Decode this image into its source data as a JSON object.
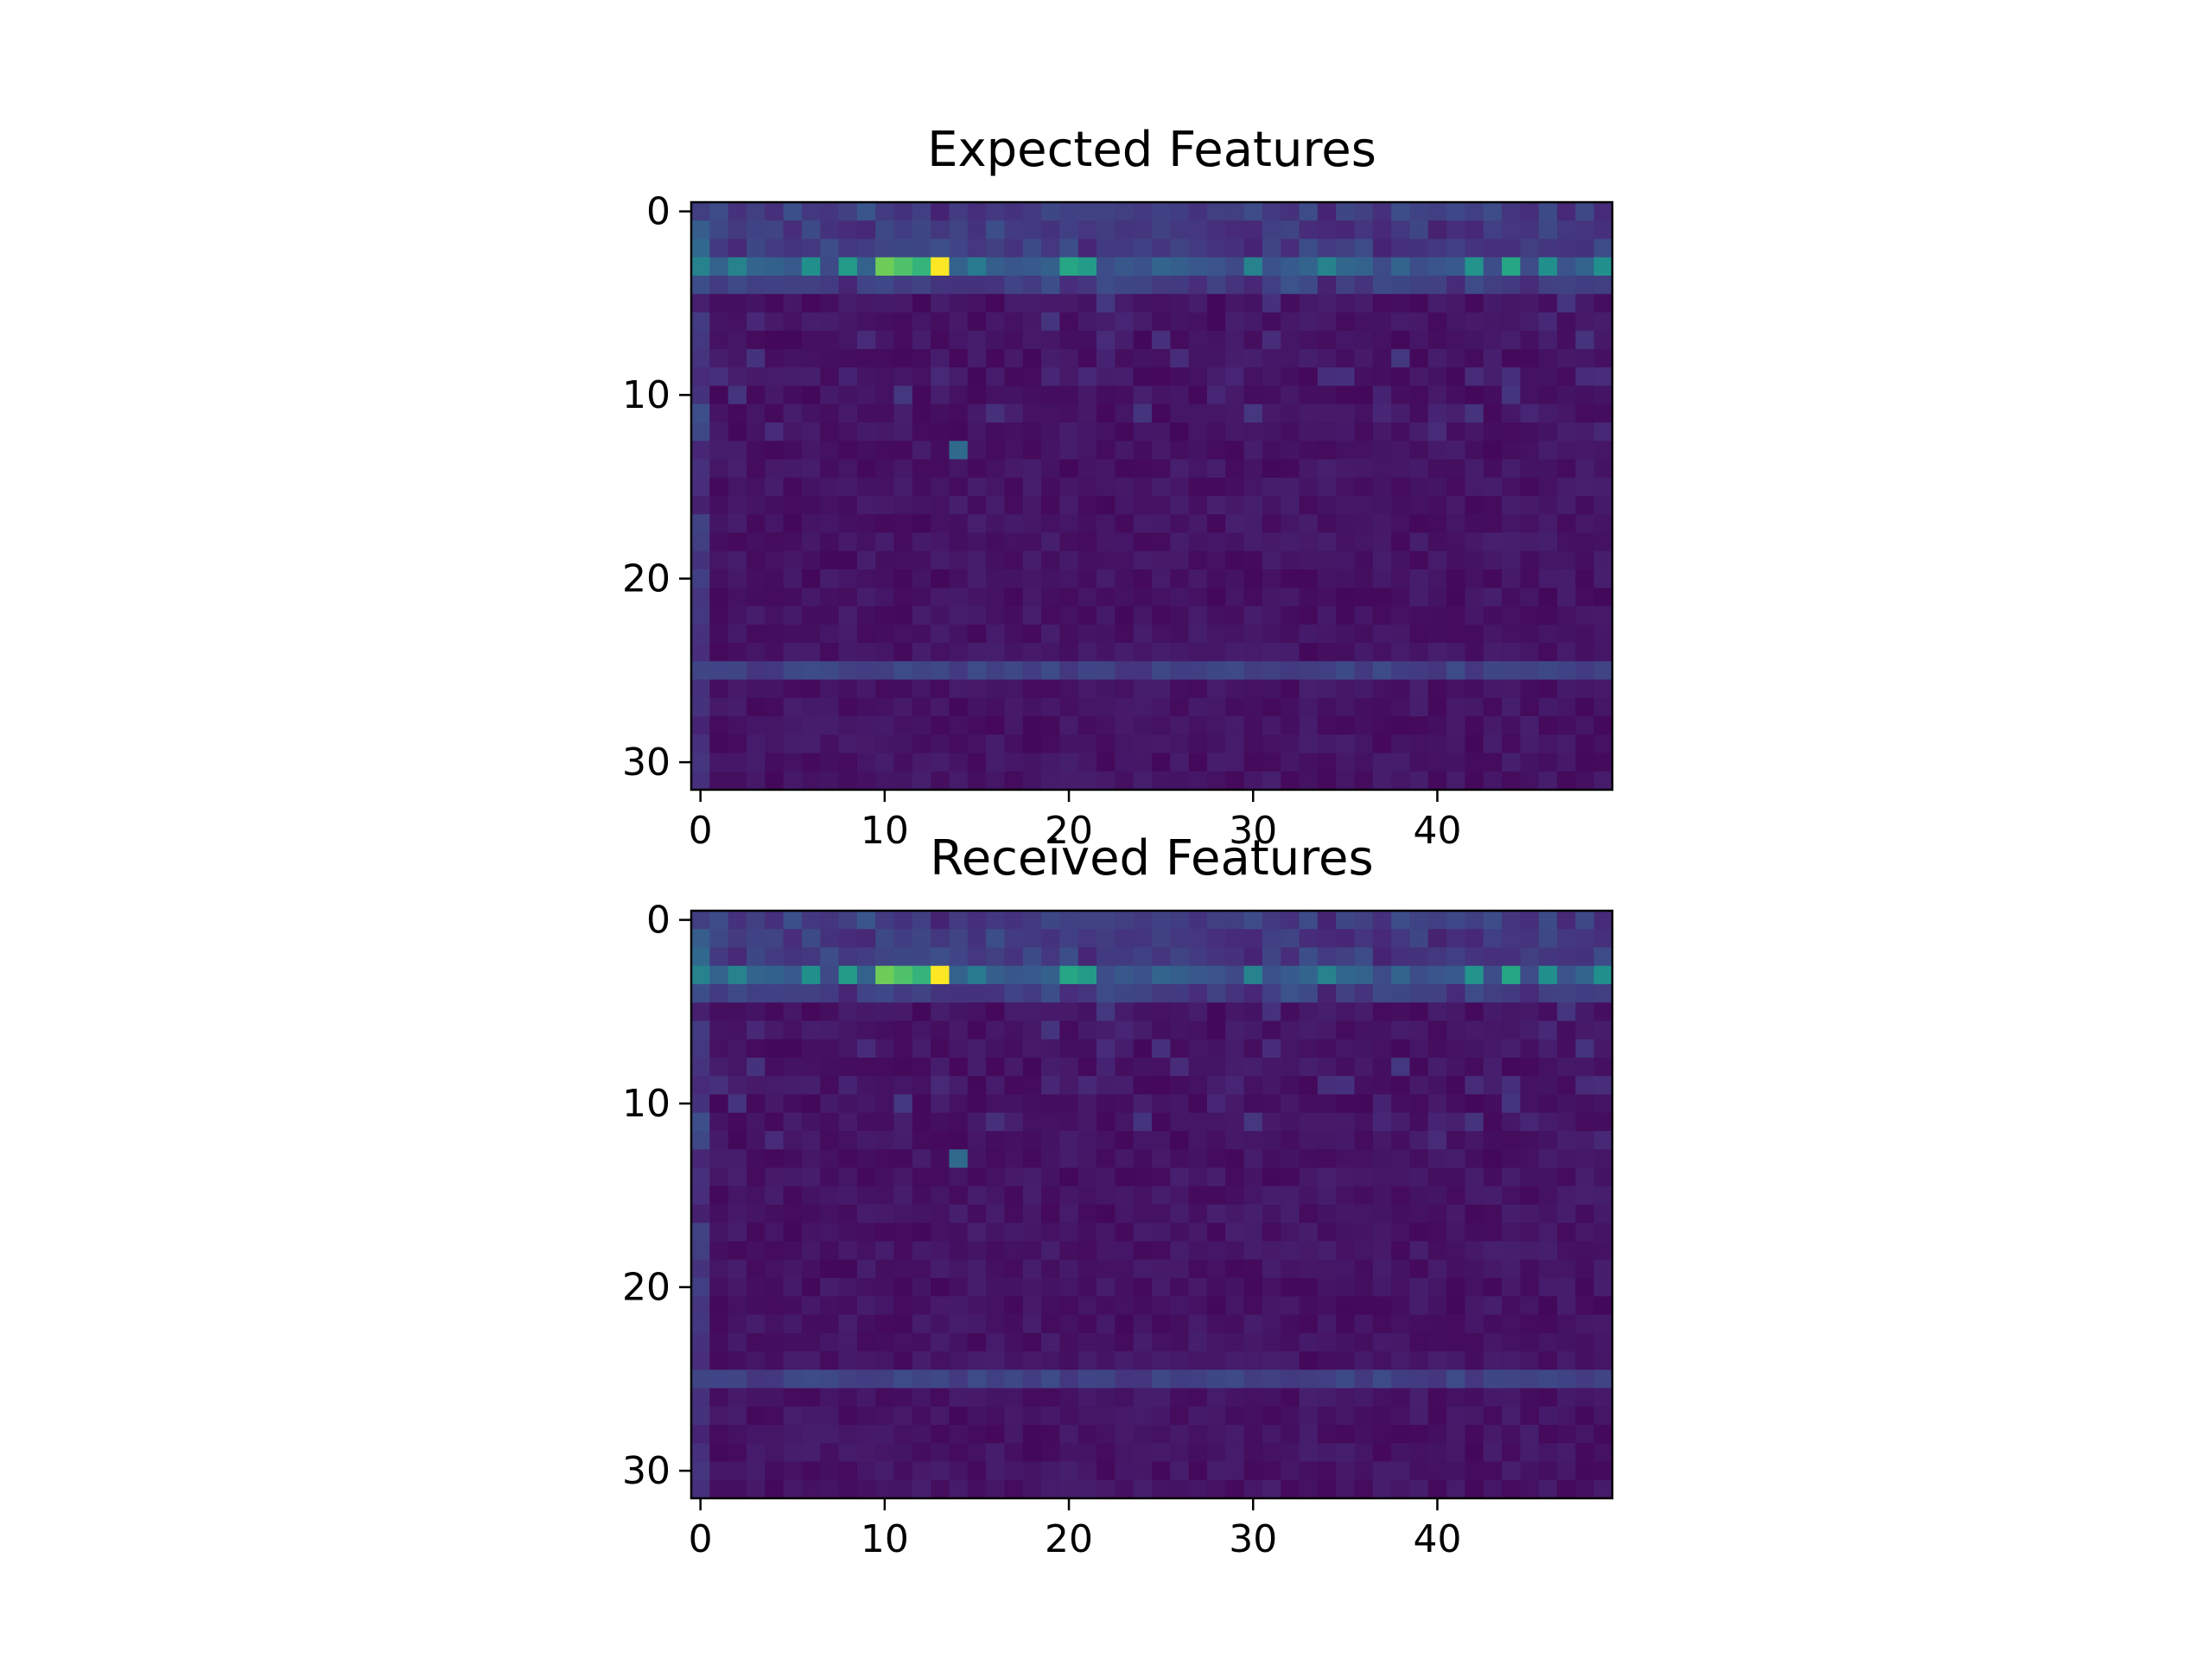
{
  "chart_data": [
    {
      "type": "heatmap",
      "title": "Expected Features",
      "rows": 32,
      "cols": 50,
      "colormap": "viridis",
      "xticks": [
        0,
        10,
        20,
        30,
        40
      ],
      "yticks": [
        0,
        10,
        20,
        30
      ],
      "xlim": [
        -0.5,
        49.5
      ],
      "ylim": [
        31.5,
        -0.5
      ],
      "hot_cells": [
        {
          "row": 3,
          "col": 13,
          "value": 1.0
        },
        {
          "row": 3,
          "col": 10,
          "value": 0.78
        },
        {
          "row": 3,
          "col": 11,
          "value": 0.72
        },
        {
          "row": 3,
          "col": 12,
          "value": 0.66
        },
        {
          "row": 3,
          "col": 20,
          "value": 0.6
        },
        {
          "row": 3,
          "col": 21,
          "value": 0.55
        },
        {
          "row": 3,
          "col": 8,
          "value": 0.55
        },
        {
          "row": 3,
          "col": 44,
          "value": 0.6
        },
        {
          "row": 3,
          "col": 42,
          "value": 0.52
        },
        {
          "row": 3,
          "col": 46,
          "value": 0.5
        },
        {
          "row": 3,
          "col": 6,
          "value": 0.5
        },
        {
          "row": 3,
          "col": 2,
          "value": 0.45
        },
        {
          "row": 3,
          "col": 0,
          "value": 0.45
        },
        {
          "row": 3,
          "col": 49,
          "value": 0.5
        },
        {
          "row": 3,
          "col": 30,
          "value": 0.45
        },
        {
          "row": 3,
          "col": 34,
          "value": 0.45
        },
        {
          "row": 3,
          "col": 15,
          "value": 0.42
        },
        {
          "row": 13,
          "col": 14,
          "value": 0.35
        }
      ],
      "band_rows": [
        {
          "row": 25,
          "value": 0.2
        }
      ]
    },
    {
      "type": "heatmap",
      "title": "Received Features",
      "rows": 32,
      "cols": 50,
      "colormap": "viridis",
      "xticks": [
        0,
        10,
        20,
        30,
        40
      ],
      "yticks": [
        0,
        10,
        20,
        30
      ],
      "xlim": [
        -0.5,
        49.5
      ],
      "ylim": [
        31.5,
        -0.5
      ],
      "hot_cells": [
        {
          "row": 3,
          "col": 13,
          "value": 1.0
        },
        {
          "row": 3,
          "col": 10,
          "value": 0.78
        },
        {
          "row": 3,
          "col": 11,
          "value": 0.72
        },
        {
          "row": 3,
          "col": 12,
          "value": 0.66
        },
        {
          "row": 3,
          "col": 20,
          "value": 0.6
        },
        {
          "row": 3,
          "col": 21,
          "value": 0.55
        },
        {
          "row": 3,
          "col": 8,
          "value": 0.55
        },
        {
          "row": 3,
          "col": 44,
          "value": 0.6
        },
        {
          "row": 3,
          "col": 42,
          "value": 0.52
        },
        {
          "row": 3,
          "col": 46,
          "value": 0.5
        },
        {
          "row": 3,
          "col": 6,
          "value": 0.5
        },
        {
          "row": 3,
          "col": 2,
          "value": 0.45
        },
        {
          "row": 3,
          "col": 0,
          "value": 0.45
        },
        {
          "row": 3,
          "col": 49,
          "value": 0.5
        },
        {
          "row": 3,
          "col": 30,
          "value": 0.45
        },
        {
          "row": 3,
          "col": 34,
          "value": 0.45
        },
        {
          "row": 3,
          "col": 15,
          "value": 0.42
        },
        {
          "row": 13,
          "col": 14,
          "value": 0.35
        }
      ],
      "band_rows": [
        {
          "row": 25,
          "value": 0.2
        }
      ]
    }
  ]
}
